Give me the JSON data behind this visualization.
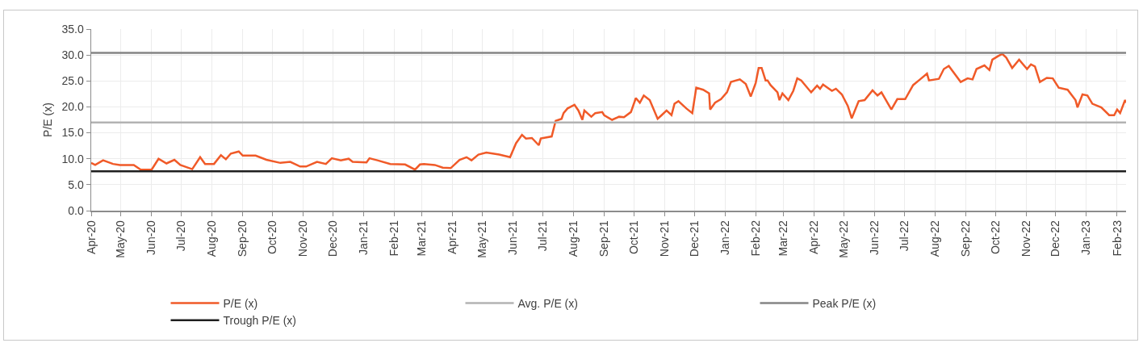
{
  "chart_data": {
    "type": "line",
    "ylabel": "P/E (x)",
    "x": [
      "2020-04-01",
      "2020-04-05",
      "2020-04-13",
      "2020-04-23",
      "2020-04-30",
      "2020-05-14",
      "2020-05-21",
      "2020-06-01",
      "2020-06-08",
      "2020-06-16",
      "2020-06-24",
      "2020-06-30",
      "2020-07-12",
      "2020-07-20",
      "2020-07-25",
      "2020-08-03",
      "2020-08-10",
      "2020-08-15",
      "2020-08-20",
      "2020-08-28",
      "2020-09-01",
      "2020-09-14",
      "2020-09-25",
      "2020-10-09",
      "2020-10-19",
      "2020-10-29",
      "2020-11-04",
      "2020-11-15",
      "2020-11-24",
      "2020-11-30",
      "2020-12-09",
      "2020-12-17",
      "2020-12-21",
      "2021-01-04",
      "2021-01-07",
      "2021-01-15",
      "2021-01-28",
      "2021-02-12",
      "2021-02-22",
      "2021-02-27",
      "2021-03-03",
      "2021-03-14",
      "2021-03-22",
      "2021-03-30",
      "2021-04-08",
      "2021-04-15",
      "2021-04-20",
      "2021-04-27",
      "2021-05-05",
      "2021-05-18",
      "2021-05-29",
      "2021-06-04",
      "2021-06-10",
      "2021-06-14",
      "2021-06-20",
      "2021-06-27",
      "2021-06-29",
      "2021-07-10",
      "2021-07-14",
      "2021-07-20",
      "2021-07-22",
      "2021-07-26",
      "2021-08-02",
      "2021-08-06",
      "2021-08-10",
      "2021-08-12",
      "2021-08-19",
      "2021-08-23",
      "2021-08-30",
      "2021-09-01",
      "2021-09-09",
      "2021-09-16",
      "2021-09-21",
      "2021-09-28",
      "2021-10-03",
      "2021-10-07",
      "2021-10-11",
      "2021-10-17",
      "2021-10-25",
      "2021-10-29",
      "2021-11-03",
      "2021-11-08",
      "2021-11-11",
      "2021-11-15",
      "2021-11-23",
      "2021-11-29",
      "2021-12-03",
      "2021-12-10",
      "2021-12-16",
      "2021-12-17",
      "2021-12-22",
      "2021-12-28",
      "2022-01-03",
      "2022-01-07",
      "2022-01-16",
      "2022-01-22",
      "2022-01-27",
      "2022-02-01",
      "2022-02-04",
      "2022-02-07",
      "2022-02-11",
      "2022-02-13",
      "2022-02-16",
      "2022-02-23",
      "2022-02-25",
      "2022-02-28",
      "2022-03-06",
      "2022-03-11",
      "2022-03-15",
      "2022-03-19",
      "2022-03-29",
      "2022-04-04",
      "2022-04-07",
      "2022-04-10",
      "2022-04-19",
      "2022-04-23",
      "2022-04-29",
      "2022-05-05",
      "2022-05-09",
      "2022-05-16",
      "2022-05-22",
      "2022-05-30",
      "2022-06-04",
      "2022-06-08",
      "2022-06-18",
      "2022-06-24",
      "2022-07-02",
      "2022-07-10",
      "2022-07-17",
      "2022-07-24",
      "2022-07-26",
      "2022-08-05",
      "2022-08-10",
      "2022-08-15",
      "2022-08-22",
      "2022-08-27",
      "2022-09-03",
      "2022-09-08",
      "2022-09-12",
      "2022-09-20",
      "2022-09-25",
      "2022-09-28",
      "2022-10-04",
      "2022-10-08",
      "2022-10-12",
      "2022-10-18",
      "2022-10-25",
      "2022-11-02",
      "2022-11-06",
      "2022-11-10",
      "2022-11-15",
      "2022-11-22",
      "2022-11-28",
      "2022-12-04",
      "2022-12-13",
      "2022-12-21",
      "2022-12-23",
      "2022-12-28",
      "2023-01-02",
      "2023-01-07",
      "2023-01-16",
      "2023-01-24",
      "2023-01-29",
      "2023-02-01",
      "2023-02-04",
      "2023-02-09",
      "2023-02-10"
    ],
    "series": [
      {
        "name": "P/E (x)",
        "color": "#f05a28",
        "values": [
          9.2,
          8.8,
          9.7,
          9.0,
          8.8,
          8.8,
          7.9,
          7.9,
          10.0,
          9.1,
          9.8,
          8.8,
          8.0,
          10.3,
          9.0,
          9.0,
          10.7,
          9.9,
          11.0,
          11.4,
          10.6,
          10.6,
          9.8,
          9.2,
          9.4,
          8.5,
          8.5,
          9.4,
          9.0,
          10.1,
          9.7,
          10.0,
          9.4,
          9.3,
          10.1,
          9.7,
          9.0,
          8.9,
          7.9,
          8.9,
          9.0,
          8.8,
          8.3,
          8.2,
          9.8,
          10.3,
          9.7,
          10.8,
          11.2,
          10.8,
          10.3,
          13.0,
          14.6,
          13.9,
          14.0,
          12.6,
          13.9,
          14.3,
          17.3,
          17.7,
          18.8,
          19.7,
          20.4,
          19.3,
          17.5,
          19.3,
          18.1,
          18.8,
          19.0,
          18.4,
          17.5,
          18.1,
          18.0,
          19.0,
          21.7,
          20.8,
          22.2,
          21.3,
          17.7,
          18.4,
          19.3,
          18.4,
          20.6,
          21.1,
          19.7,
          18.8,
          23.7,
          23.3,
          22.6,
          19.5,
          20.8,
          21.5,
          22.8,
          24.8,
          25.3,
          24.4,
          22.0,
          24.6,
          27.5,
          27.5,
          25.1,
          25.1,
          24.2,
          22.8,
          21.3,
          22.6,
          21.3,
          23.1,
          25.5,
          25.1,
          22.8,
          24.1,
          23.5,
          24.3,
          23.1,
          23.5,
          22.4,
          20.2,
          17.8,
          21.1,
          21.3,
          23.2,
          22.2,
          22.8,
          19.5,
          21.5,
          21.5,
          24.2,
          25.3,
          26.4,
          25.1,
          25.4,
          27.3,
          27.9,
          26.1,
          24.8,
          25.5,
          25.3,
          27.3,
          28.0,
          27.1,
          29.1,
          29.8,
          30.2,
          29.5,
          27.5,
          29.1,
          27.3,
          28.2,
          27.8,
          24.8,
          25.6,
          25.5,
          23.7,
          23.3,
          21.3,
          19.9,
          22.4,
          22.2,
          20.6,
          19.9,
          18.4,
          18.4,
          19.5,
          18.8,
          21.3,
          20.8
        ]
      }
    ],
    "ref_lines": [
      {
        "axis": "y",
        "value": 17.0,
        "label": "Avg. P/E (x)",
        "color": "#b3b3b3"
      },
      {
        "axis": "y",
        "value": 30.4,
        "label": "Peak P/E (x)",
        "color": "#858585"
      },
      {
        "axis": "y",
        "value": 7.6,
        "label": "Trough P/E (x)",
        "color": "#1f1f1f"
      }
    ],
    "xlim": [
      "2020-04-01",
      "2023-02-10"
    ],
    "xticks": [
      {
        "value": "2020-04-01",
        "label": "Apr-20"
      },
      {
        "value": "2020-05-01",
        "label": "May-20"
      },
      {
        "value": "2020-06-01",
        "label": "Jun-20"
      },
      {
        "value": "2020-07-01",
        "label": "Jul-20"
      },
      {
        "value": "2020-08-01",
        "label": "Aug-20"
      },
      {
        "value": "2020-09-01",
        "label": "Sep-20"
      },
      {
        "value": "2020-10-01",
        "label": "Oct-20"
      },
      {
        "value": "2020-11-01",
        "label": "Nov-20"
      },
      {
        "value": "2020-12-01",
        "label": "Dec-20"
      },
      {
        "value": "2021-01-01",
        "label": "Jan-21"
      },
      {
        "value": "2021-02-01",
        "label": "Feb-21"
      },
      {
        "value": "2021-03-01",
        "label": "Mar-21"
      },
      {
        "value": "2021-04-01",
        "label": "Apr-21"
      },
      {
        "value": "2021-05-01",
        "label": "May-21"
      },
      {
        "value": "2021-06-01",
        "label": "Jun-21"
      },
      {
        "value": "2021-07-01",
        "label": "Jul-21"
      },
      {
        "value": "2021-08-01",
        "label": "Aug-21"
      },
      {
        "value": "2021-09-01",
        "label": "Sep-21"
      },
      {
        "value": "2021-10-01",
        "label": "Oct-21"
      },
      {
        "value": "2021-11-01",
        "label": "Nov-21"
      },
      {
        "value": "2021-12-01",
        "label": "Dec-21"
      },
      {
        "value": "2022-01-01",
        "label": "Jan-22"
      },
      {
        "value": "2022-02-01",
        "label": "Feb-22"
      },
      {
        "value": "2022-03-01",
        "label": "Mar-22"
      },
      {
        "value": "2022-04-01",
        "label": "Apr-22"
      },
      {
        "value": "2022-05-01",
        "label": "May-22"
      },
      {
        "value": "2022-06-01",
        "label": "Jun-22"
      },
      {
        "value": "2022-07-01",
        "label": "Jul-22"
      },
      {
        "value": "2022-08-01",
        "label": "Aug-22"
      },
      {
        "value": "2022-09-01",
        "label": "Sep-22"
      },
      {
        "value": "2022-10-01",
        "label": "Oct-22"
      },
      {
        "value": "2022-11-01",
        "label": "Nov-22"
      },
      {
        "value": "2022-12-01",
        "label": "Dec-22"
      },
      {
        "value": "2023-01-01",
        "label": "Jan-23"
      },
      {
        "value": "2023-02-01",
        "label": "Feb-23"
      }
    ],
    "ylim": [
      0,
      35
    ],
    "yticks": [
      {
        "value": 0,
        "label": "0.0"
      },
      {
        "value": 5,
        "label": "5.0"
      },
      {
        "value": 10,
        "label": "10.0"
      },
      {
        "value": 15,
        "label": "15.0"
      },
      {
        "value": 20,
        "label": "20.0"
      },
      {
        "value": 25,
        "label": "25.0"
      },
      {
        "value": 30,
        "label": "30.0"
      },
      {
        "value": 35,
        "label": "35.0"
      }
    ],
    "grid": true,
    "legend": "bottom",
    "marker": "none",
    "line_style": "solid"
  }
}
